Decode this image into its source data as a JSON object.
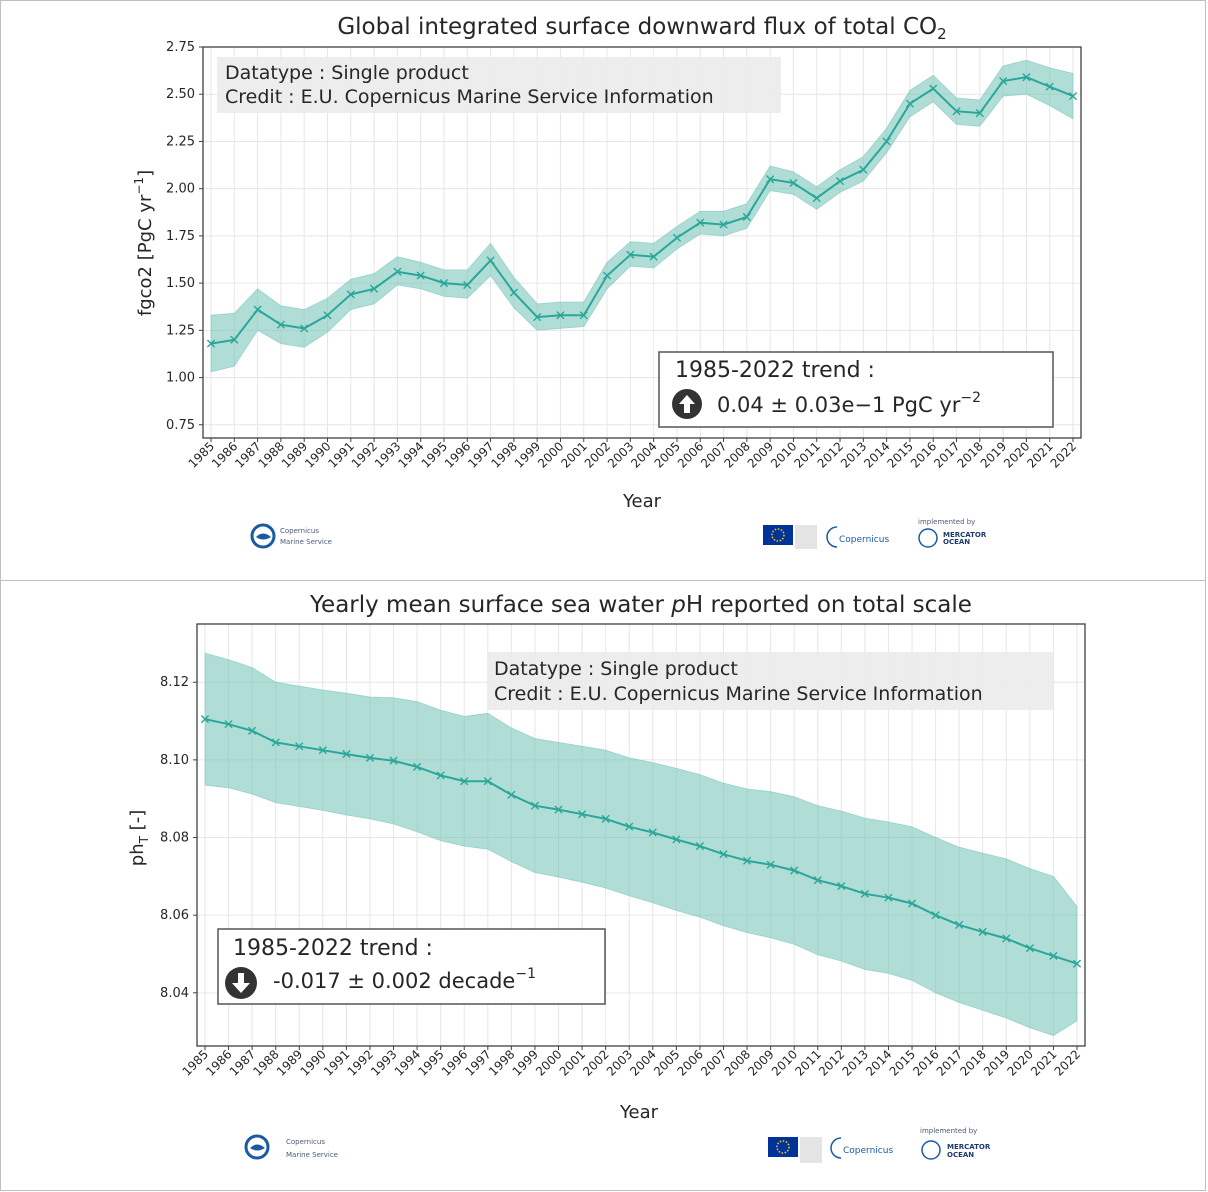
{
  "colors": {
    "line": "#2aa69a",
    "band": "#6fc2b7",
    "grid": "#e6e6e6",
    "frame": "#404040",
    "infobox_bg": "#ebebeb",
    "badge_bg": "#333333",
    "copernicus_blue": "#1a5aa3",
    "eu_blue": "#003399",
    "eu_star": "#ffcc00"
  },
  "panels": [
    {
      "title_main": "Global integrated surface downward flux of total CO",
      "title_sub": "2",
      "ylabel_main": "fgco2 [PgC yr",
      "ylabel_sup": "−1",
      "ylabel_end": "]",
      "xlabel": "Year",
      "info_line1": "Datatype : Single product",
      "info_line2": "Credit : E.U. Copernicus Marine Service Information",
      "trend_title": "1985-2022 trend :",
      "trend_value": "0.04 ± 0.03e−1  PgC yr",
      "trend_sup": "−2",
      "trend_direction": "up",
      "icon": "arrow-up-icon",
      "logo_left_line1": "Copernicus",
      "logo_left_line2": "Marine Service",
      "logo_copernicus": "Copernicus",
      "logo_mercator_small": "implemented by",
      "logo_mercator_line1": "MERCATOR",
      "logo_mercator_line2": "OCEAN"
    },
    {
      "title_pre": "Yearly mean surface sea water ",
      "title_italic": "p",
      "title_post": "H reported on total scale",
      "ylabel_main": "ph",
      "ylabel_sub": "T",
      "ylabel_end": " [-]",
      "xlabel": "Year",
      "info_line1": "Datatype : Single product",
      "info_line2": "Credit : E.U. Copernicus Marine Service Information",
      "trend_title": "1985-2022 trend :",
      "trend_value": "-0.017 ± 0.002 decade",
      "trend_sup": "−1",
      "trend_direction": "down",
      "icon": "arrow-down-icon",
      "logo_left_line1": "Copernicus",
      "logo_left_line2": "Marine Service",
      "logo_copernicus": "Copernicus",
      "logo_mercator_small": "implemented by",
      "logo_mercator_line1": "MERCATOR",
      "logo_mercator_line2": "OCEAN"
    }
  ],
  "chart_data": [
    {
      "type": "line",
      "title": "Global integrated surface downward flux of total CO2",
      "xlabel": "Year",
      "ylabel": "fgco2 [PgC yr−1]",
      "x": [
        "1985",
        "1986",
        "1987",
        "1988",
        "1989",
        "1990",
        "1991",
        "1992",
        "1993",
        "1994",
        "1995",
        "1996",
        "1997",
        "1998",
        "1999",
        "2000",
        "2001",
        "2002",
        "2003",
        "2004",
        "2005",
        "2006",
        "2007",
        "2008",
        "2009",
        "2010",
        "2011",
        "2012",
        "2013",
        "2014",
        "2015",
        "2016",
        "2017",
        "2018",
        "2019",
        "2020",
        "2021",
        "2022"
      ],
      "series": [
        {
          "values": [
            1.18,
            1.2,
            1.36,
            1.28,
            1.26,
            1.33,
            1.44,
            1.47,
            1.56,
            1.54,
            1.5,
            1.49,
            1.62,
            1.45,
            1.32,
            1.33,
            1.33,
            1.54,
            1.65,
            1.64,
            1.74,
            1.82,
            1.81,
            1.85,
            2.05,
            2.03,
            1.95,
            2.04,
            2.1,
            2.25,
            2.45,
            2.53,
            2.41,
            2.4,
            2.57,
            2.59,
            2.54,
            2.49
          ],
          "lower": [
            1.03,
            1.06,
            1.25,
            1.18,
            1.16,
            1.24,
            1.36,
            1.39,
            1.49,
            1.47,
            1.43,
            1.42,
            1.54,
            1.37,
            1.25,
            1.26,
            1.27,
            1.47,
            1.59,
            1.58,
            1.68,
            1.76,
            1.75,
            1.79,
            1.99,
            1.97,
            1.89,
            1.98,
            2.04,
            2.19,
            2.38,
            2.46,
            2.34,
            2.33,
            2.49,
            2.5,
            2.44,
            2.37
          ],
          "upper": [
            1.33,
            1.34,
            1.47,
            1.38,
            1.36,
            1.42,
            1.52,
            1.55,
            1.64,
            1.61,
            1.57,
            1.57,
            1.71,
            1.53,
            1.39,
            1.4,
            1.4,
            1.61,
            1.72,
            1.71,
            1.8,
            1.88,
            1.88,
            1.92,
            2.12,
            2.09,
            2.01,
            2.1,
            2.17,
            2.32,
            2.52,
            2.6,
            2.48,
            2.47,
            2.65,
            2.68,
            2.64,
            2.61
          ]
        }
      ],
      "ylim": [
        0.68,
        2.75
      ],
      "yticks": [
        "0.75",
        "1.00",
        "1.25",
        "1.50",
        "1.75",
        "2.00",
        "2.25",
        "2.50",
        "2.75"
      ],
      "grid": true
    },
    {
      "type": "line",
      "title": "Yearly mean surface sea water pH reported on total scale",
      "xlabel": "Year",
      "ylabel": "phT [-]",
      "x": [
        "1985",
        "1986",
        "1987",
        "1988",
        "1989",
        "1990",
        "1991",
        "1992",
        "1993",
        "1994",
        "1995",
        "1996",
        "1997",
        "1998",
        "1999",
        "2000",
        "2001",
        "2002",
        "2003",
        "2004",
        "2005",
        "2006",
        "2007",
        "2008",
        "2009",
        "2010",
        "2011",
        "2012",
        "2013",
        "2014",
        "2015",
        "2016",
        "2017",
        "2018",
        "2019",
        "2020",
        "2021",
        "2022"
      ],
      "series": [
        {
          "values": [
            8.1105,
            8.1092,
            8.1075,
            8.1045,
            8.1035,
            8.1025,
            8.1015,
            8.1005,
            8.0998,
            8.0982,
            8.096,
            8.0945,
            8.0945,
            8.091,
            8.0882,
            8.0872,
            8.086,
            8.0848,
            8.0828,
            8.0813,
            8.0795,
            8.0778,
            8.0757,
            8.074,
            8.073,
            8.0715,
            8.069,
            8.0675,
            8.0655,
            8.0645,
            8.063,
            8.06,
            8.0575,
            8.0557,
            8.054,
            8.0515,
            8.0495,
            8.0475
          ],
          "lower": [
            8.0935,
            8.0928,
            8.0912,
            8.089,
            8.088,
            8.087,
            8.0858,
            8.0848,
            8.0835,
            8.0815,
            8.0792,
            8.0778,
            8.077,
            8.0738,
            8.071,
            8.0698,
            8.0685,
            8.067,
            8.065,
            8.0632,
            8.0612,
            8.0595,
            8.0573,
            8.0555,
            8.0542,
            8.0525,
            8.0498,
            8.0482,
            8.046,
            8.045,
            8.0432,
            8.04,
            8.0375,
            8.0355,
            8.0335,
            8.031,
            8.029,
            8.0328
          ],
          "upper": [
            8.1275,
            8.1258,
            8.1238,
            8.12,
            8.119,
            8.118,
            8.1172,
            8.1162,
            8.116,
            8.115,
            8.1128,
            8.1112,
            8.112,
            8.1082,
            8.1055,
            8.1045,
            8.1035,
            8.1025,
            8.1005,
            8.0993,
            8.0978,
            8.0962,
            8.094,
            8.0925,
            8.0918,
            8.0905,
            8.0882,
            8.0868,
            8.085,
            8.084,
            8.0828,
            8.08,
            8.0775,
            8.076,
            8.0745,
            8.072,
            8.07,
            8.0622
          ]
        }
      ],
      "ylim": [
        8.0263,
        8.135
      ],
      "yticks": [
        "8.04",
        "8.06",
        "8.08",
        "8.10",
        "8.12"
      ],
      "grid": true
    }
  ]
}
